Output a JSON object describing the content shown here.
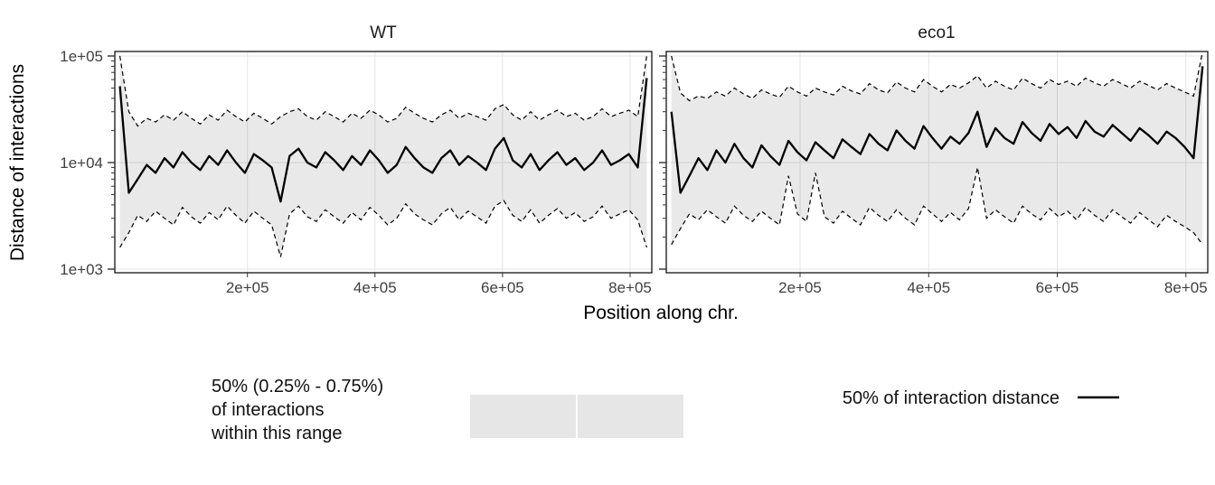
{
  "chart_data": {
    "type": "line",
    "title": "",
    "xlabel": "Position along chr.",
    "ylabel": "Distance of interactions",
    "x_ticks": [
      200000,
      400000,
      600000,
      800000
    ],
    "x_tick_labels": [
      "2e+05",
      "4e+05",
      "6e+05",
      "8e+05"
    ],
    "y_ticks": [
      1000,
      10000,
      100000
    ],
    "y_tick_labels": [
      "1e+03",
      "1e+04",
      "1e+05"
    ],
    "xlim": [
      -8000,
      834000
    ],
    "ylim_log10": [
      2.966,
      5.042
    ],
    "grid": "on",
    "legend_position": "bottom",
    "colors": {
      "ribbon": "rgba(0,0,0,0.085)",
      "ribbon_key": "#e6e6e6",
      "line": "#000000",
      "grid": "#e4e4e4",
      "tick": "#333333"
    },
    "x": [
      0,
      14000,
      28000,
      42000,
      56000,
      70000,
      84000,
      98000,
      112000,
      126000,
      140000,
      154000,
      168000,
      182000,
      196000,
      210000,
      224000,
      238000,
      252000,
      266000,
      280000,
      294000,
      308000,
      322000,
      336000,
      350000,
      364000,
      378000,
      392000,
      406000,
      420000,
      434000,
      448000,
      462000,
      476000,
      490000,
      504000,
      518000,
      532000,
      546000,
      560000,
      574000,
      588000,
      602000,
      616000,
      630000,
      644000,
      658000,
      672000,
      686000,
      700000,
      714000,
      728000,
      742000,
      756000,
      770000,
      784000,
      798000,
      812000,
      826000
    ],
    "facets": [
      {
        "label": "WT",
        "median": [
          52000,
          5200,
          7000,
          9500,
          8000,
          11000,
          9000,
          12500,
          10000,
          8500,
          11500,
          9500,
          13000,
          10000,
          8000,
          12000,
          10500,
          9000,
          4300,
          11500,
          13500,
          10000,
          9000,
          12500,
          10500,
          8500,
          11500,
          9500,
          13000,
          10500,
          8000,
          9500,
          14000,
          11000,
          9000,
          8000,
          11000,
          13000,
          9500,
          11500,
          10000,
          8500,
          13500,
          17000,
          10500,
          9000,
          12000,
          8500,
          10500,
          12500,
          9500,
          11000,
          8500,
          10000,
          13000,
          9500,
          10500,
          12000,
          9000,
          62000
        ],
        "upper": [
          100000,
          30000,
          22000,
          26000,
          24000,
          28000,
          25000,
          30000,
          26000,
          23000,
          28000,
          25000,
          31000,
          27000,
          24000,
          29000,
          26000,
          23000,
          27000,
          30000,
          32000,
          27000,
          25000,
          30000,
          27000,
          24000,
          29000,
          26000,
          31000,
          28000,
          24000,
          26000,
          33000,
          29000,
          26000,
          24000,
          28000,
          31000,
          26000,
          29000,
          27000,
          25000,
          32000,
          35000,
          28000,
          25000,
          30000,
          25000,
          28000,
          31000,
          27000,
          29000,
          25000,
          27000,
          32000,
          27000,
          29000,
          31000,
          27000,
          100000
        ],
        "lower": [
          1600,
          2200,
          3200,
          2800,
          3500,
          3000,
          2600,
          3800,
          3100,
          2700,
          3400,
          2900,
          3900,
          3200,
          2700,
          3500,
          3000,
          2600,
          1300,
          3300,
          3900,
          3100,
          2800,
          3600,
          3100,
          2700,
          3400,
          2900,
          3800,
          3200,
          2600,
          3000,
          4100,
          3300,
          2900,
          2600,
          3300,
          3800,
          2900,
          3500,
          3100,
          2700,
          3900,
          4400,
          3200,
          2800,
          3600,
          2700,
          3200,
          3700,
          3000,
          3400,
          2800,
          3100,
          3900,
          3000,
          3300,
          3600,
          2900,
          1600
        ]
      },
      {
        "label": "eco1",
        "median": [
          30000,
          5200,
          7500,
          11000,
          8500,
          13000,
          10000,
          15000,
          11000,
          9000,
          14500,
          11500,
          9500,
          16000,
          12500,
          10500,
          15500,
          13000,
          11000,
          16500,
          14000,
          12000,
          18500,
          15000,
          13000,
          20000,
          16000,
          13500,
          22000,
          17000,
          13500,
          17500,
          15000,
          19000,
          30000,
          14000,
          21000,
          17000,
          15000,
          24000,
          19000,
          16000,
          23000,
          18500,
          21500,
          17000,
          24500,
          19500,
          17500,
          22500,
          19000,
          16000,
          21000,
          18000,
          15000,
          19500,
          17000,
          14000,
          11000,
          80000
        ],
        "upper": [
          100000,
          45000,
          38000,
          42000,
          40000,
          46000,
          42000,
          50000,
          44000,
          40000,
          48000,
          44000,
          41000,
          52000,
          46000,
          42000,
          50000,
          46000,
          43000,
          52000,
          47000,
          44000,
          55000,
          48000,
          45000,
          57000,
          50000,
          46000,
          60000,
          52000,
          46000,
          54000,
          50000,
          56000,
          65000,
          50000,
          58000,
          52000,
          48000,
          62000,
          55000,
          50000,
          60000,
          54000,
          58000,
          52000,
          62000,
          56000,
          52000,
          60000,
          55000,
          50000,
          58000,
          53000,
          48000,
          55000,
          50000,
          46000,
          42000,
          110000
        ],
        "lower": [
          1700,
          2400,
          3300,
          2900,
          3600,
          3100,
          2700,
          3900,
          3200,
          2800,
          3500,
          3000,
          2600,
          7500,
          3300,
          2800,
          8000,
          3100,
          2700,
          3500,
          3000,
          2600,
          3800,
          3200,
          2800,
          3600,
          3000,
          2600,
          3900,
          3300,
          2800,
          3400,
          2900,
          3700,
          9000,
          3000,
          3600,
          3100,
          2700,
          3900,
          3300,
          2900,
          3700,
          3100,
          3500,
          2900,
          3800,
          3200,
          2800,
          3600,
          3100,
          2700,
          3400,
          2900,
          2500,
          3200,
          2800,
          2500,
          2200,
          1700
        ]
      }
    ],
    "legend": {
      "ribbon_lines": [
        "50% (0.25% - 0.75%)",
        "of interactions",
        "within this range"
      ],
      "line_label": "50% of interaction distance"
    }
  }
}
